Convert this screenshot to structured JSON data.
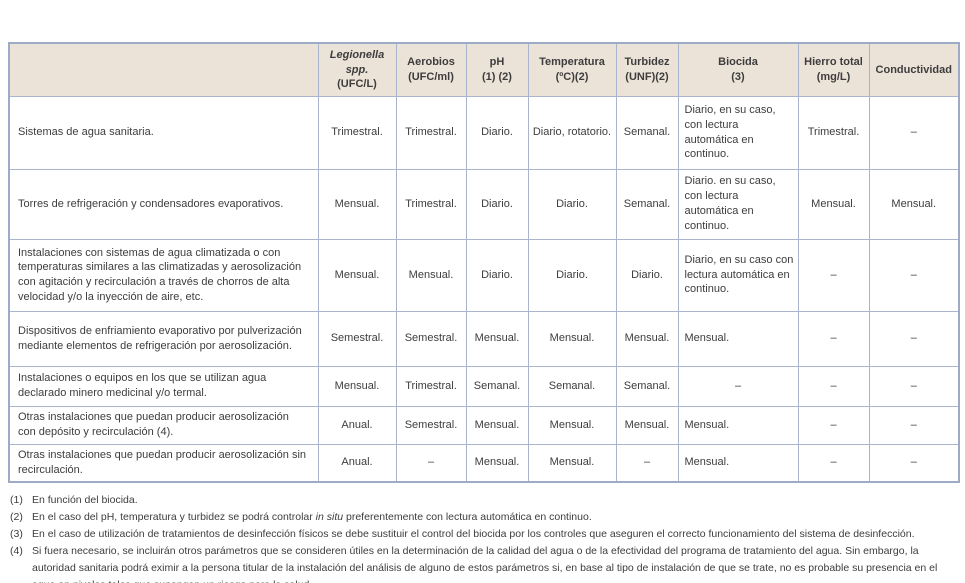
{
  "colors": {
    "header_background": "#ece3d8",
    "table_border": "#a8b5cc",
    "outer_border": "#9dabc6",
    "text": "#3d3d3d",
    "page_background": "#ffffff"
  },
  "table": {
    "dash": "–",
    "columns": [
      {
        "key": "label",
        "name": "",
        "unit": ""
      },
      {
        "key": "legionella",
        "name": "Legionella spp.",
        "unit": "(UFC/L)"
      },
      {
        "key": "aerobios",
        "name": "Aerobios",
        "unit": "(UFC/ml)"
      },
      {
        "key": "ph",
        "name": "pH",
        "unit": "(1) (2)"
      },
      {
        "key": "temperatura",
        "name": "Temperatura",
        "unit": "(ºC)(2)"
      },
      {
        "key": "turbidez",
        "name": "Turbidez",
        "unit": "(UNF)(2)"
      },
      {
        "key": "biocida",
        "name": "Biocida",
        "unit": "(3)"
      },
      {
        "key": "hierro_total",
        "name": "Hierro total",
        "unit": "(mg/L)"
      },
      {
        "key": "conductividad",
        "name": "Conductividad",
        "unit": ""
      }
    ],
    "rows": [
      {
        "label": "Sistemas de agua sanitaria.",
        "cells": [
          "Trimestral.",
          "Trimestral.",
          "Diario.",
          "Diario, rotatorio.",
          "Semanal.",
          "Diario, en su caso, con lectura automática en continuo.",
          "Trimestral.",
          "–"
        ]
      },
      {
        "label": "Torres de refrigeración y condensadores evaporativos.",
        "cells": [
          "Mensual.",
          "Trimestral.",
          "Diario.",
          "Diario.",
          "Semanal.",
          "Diario. en su caso, con lectura automática en continuo.",
          "Mensual.",
          "Mensual."
        ]
      },
      {
        "label": "Instalaciones con sistemas de agua climatizada o con temperaturas similares a las climatizadas y aerosolización con agitación y recirculación a través de chorros de alta velocidad y/o la inyección de aire, etc.",
        "cells": [
          "Mensual.",
          "Mensual.",
          "Diario.",
          "Diario.",
          "Diario.",
          "Diario, en su caso con lectura automática en continuo.",
          "–",
          "–"
        ]
      },
      {
        "label": "Dispositivos de enfriamiento evaporativo por pulverización mediante elementos de refrigeración por aerosolización.",
        "cells": [
          "Semestral.",
          "Semestral.",
          "Mensual.",
          "Mensual.",
          "Mensual.",
          "Mensual.",
          "–",
          "–"
        ]
      },
      {
        "label": "Instalaciones o equipos en los que se utilizan agua declarado minero medicinal y/o termal.",
        "cells": [
          "Mensual.",
          "Trimestral.",
          "Semanal.",
          "Semanal.",
          "Semanal.",
          "–",
          "–",
          "–"
        ]
      },
      {
        "label": "Otras instalaciones que puedan producir aerosolización con depósito y recirculación (4).",
        "cells": [
          "Anual.",
          "Semestral.",
          "Mensual.",
          "Mensual.",
          "Mensual.",
          "Mensual.",
          "–",
          "–"
        ]
      },
      {
        "label": "Otras instalaciones que puedan producir aerosolización sin recirculación.",
        "cells": [
          "Anual.",
          "–",
          "Mensual.",
          "Mensual.",
          "–",
          "Mensual.",
          "–",
          "–"
        ]
      }
    ]
  },
  "footnotes": [
    {
      "num": "(1)",
      "text": "En función del biocida."
    },
    {
      "num": "(2)",
      "pre": "En el caso del pH, temperatura y turbidez se podrá controlar ",
      "italic": "in situ",
      "post": " preferentemente con lectura automática en continuo."
    },
    {
      "num": "(3)",
      "text": "En el caso de utilización de tratamientos de desinfección físicos se debe sustituir el control del biocida por los controles que aseguren el correcto funcionamiento del sistema de desinfección."
    },
    {
      "num": "(4)",
      "text": "Si fuera necesario, se incluirán otros parámetros que se consideren útiles en la determinación de la calidad del agua o de la efectividad del programa de tratamiento del agua. Sin embargo, la autoridad sanitaria podrá eximir a la persona titular de la instalación del análisis de alguno de estos parámetros si, en base al tipo de instalación de que se trate, no es probable su presencia en el agua en niveles tales que supongan un riesgo para la salud."
    }
  ]
}
